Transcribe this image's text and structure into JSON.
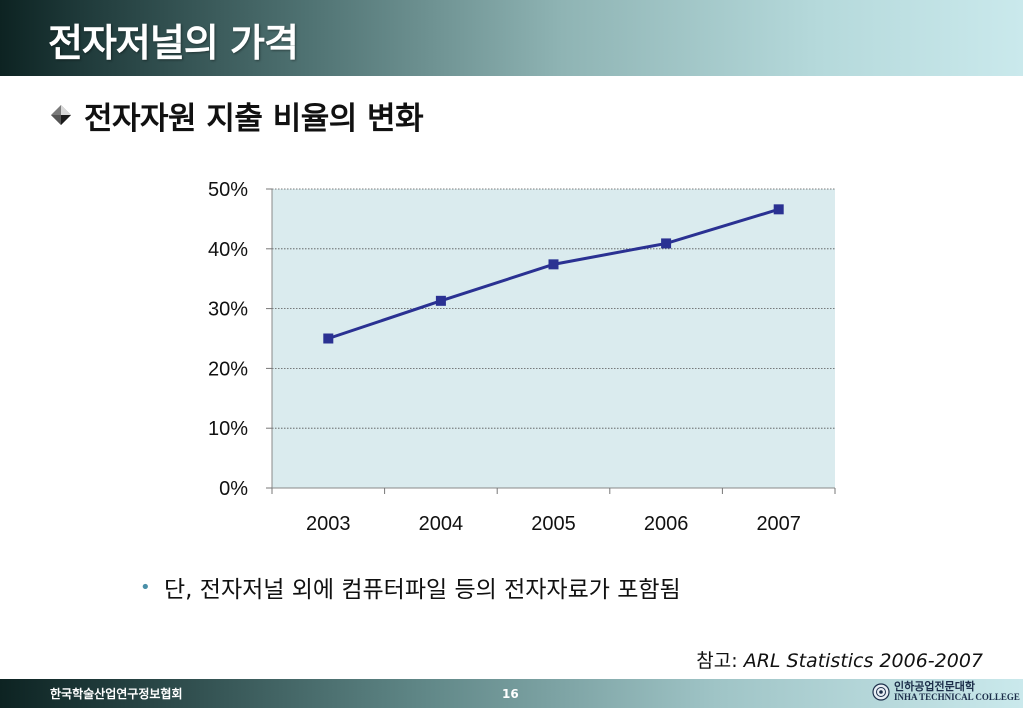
{
  "slide": {
    "title": "전자저널의 가격",
    "subtitle": "전자자원 지출 비율의 변화",
    "note": "단, 전자저널 외에 컴퓨터파일 등의 전자자료가 포함됨",
    "reference_prefix": "참고:",
    "reference_source": "ARL Statistics 2006-2007"
  },
  "footer": {
    "organization": "한국학술산업연구정보협회",
    "page_number": "16",
    "logo_korean": "인하공업전문대학",
    "logo_english": "INHA TECHNICAL COLLEGE"
  },
  "icons": {
    "subtitle_bullet": "diamond-bullet-icon",
    "note_bullet": "bullet-dot-icon",
    "logo_seal": "college-seal-icon"
  },
  "colors": {
    "line": "#2a3192",
    "marker": "#2a3192",
    "plot_background": "#daebee",
    "title_text": "#ffffff"
  },
  "chart_data": {
    "type": "line",
    "categories": [
      "2003",
      "2004",
      "2005",
      "2006",
      "2007"
    ],
    "values": [
      25.0,
      31.3,
      37.4,
      40.9,
      46.6
    ],
    "y_ticks": [
      "0%",
      "10%",
      "20%",
      "30%",
      "40%",
      "50%"
    ],
    "ylim": [
      0,
      50
    ],
    "unit": "%",
    "grid": true,
    "legend": "none",
    "title": "",
    "xlabel": "",
    "ylabel": ""
  }
}
